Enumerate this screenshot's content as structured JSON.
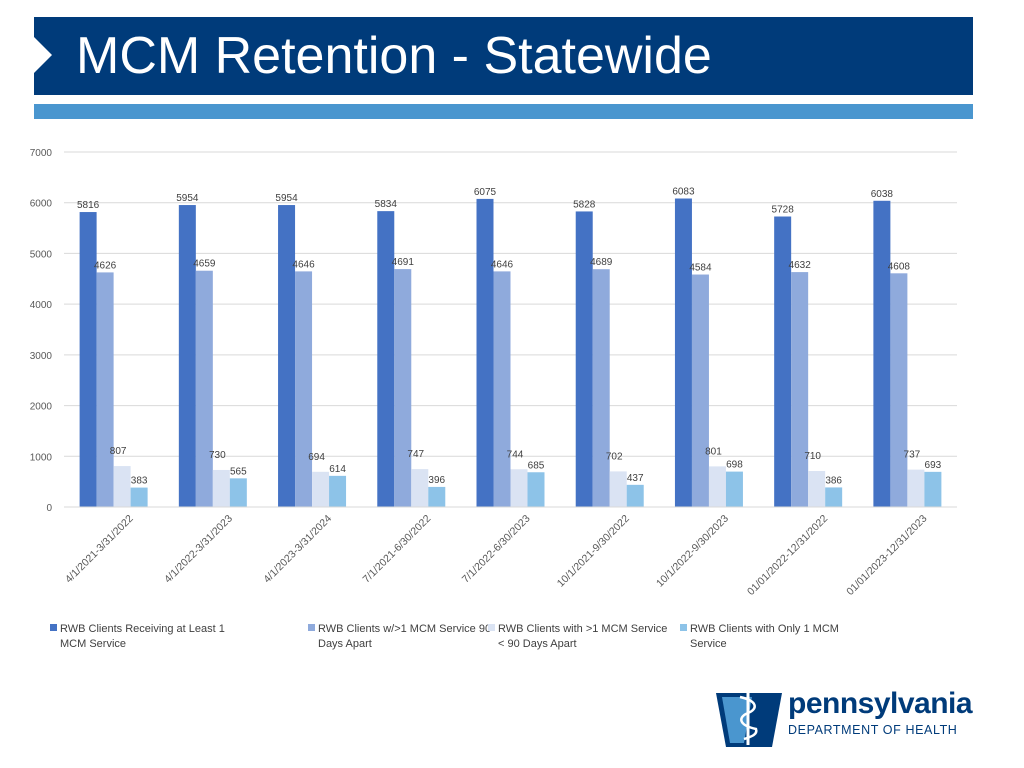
{
  "slide": {
    "title": "MCM Retention - Statewide"
  },
  "logo": {
    "name": "pennsylvania",
    "subtitle": "DEPARTMENT OF HEALTH",
    "icon": "keystone-caduceus-icon"
  },
  "colors": {
    "title_bar": "#003b7a",
    "accent_bar": "#4a96cf"
  },
  "chart_data": {
    "type": "bar",
    "categories": [
      "4/1/2021-3/31/2022",
      "4/1/2022-3/31/2023",
      "4/1/2023-3/31/2024",
      "7/1/2021-6/30/2022",
      "7/1/2022-6/30/2023",
      "10/1/2021-9/30/2022",
      "10/1/2022-9/30/2023",
      "01/01/2022-12/31/2022",
      "01/01/2023-12/31/2023"
    ],
    "series": [
      {
        "name": "RWB Clients Receiving at Least 1 MCM Service",
        "color": "#4472c4",
        "values": [
          5816,
          5954,
          5954,
          5834,
          6075,
          5828,
          6083,
          5728,
          6038
        ]
      },
      {
        "name": "RWB Clients w/>1 MCM Service 90 Days Apart",
        "color": "#8faadc",
        "values": [
          4626,
          4659,
          4646,
          4691,
          4646,
          4689,
          4584,
          4632,
          4608
        ]
      },
      {
        "name": "RWB Clients with >1 MCM Service < 90 Days Apart",
        "color": "#dae3f3",
        "values": [
          807,
          730,
          694,
          747,
          744,
          702,
          801,
          710,
          737
        ]
      },
      {
        "name": "RWB Clients with Only 1 MCM Service",
        "color": "#8dc3e8",
        "values": [
          383,
          565,
          614,
          396,
          685,
          437,
          698,
          386,
          693
        ]
      }
    ],
    "ylim": [
      0,
      7000
    ],
    "yticks": [
      0,
      1000,
      2000,
      3000,
      4000,
      5000,
      6000,
      7000
    ],
    "grid": true,
    "legend_position": "bottom",
    "title": "",
    "xlabel": "",
    "ylabel": ""
  }
}
